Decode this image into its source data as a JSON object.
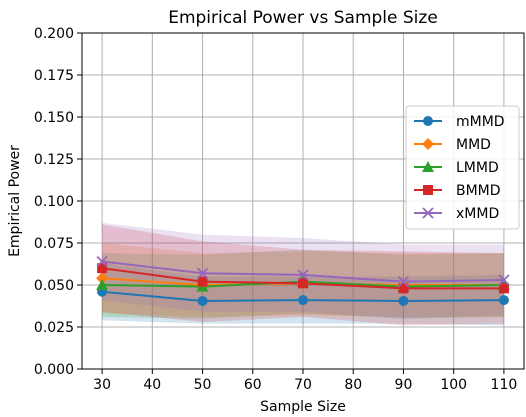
{
  "chart_data": {
    "type": "line",
    "title": "Empirical Power vs Sample Size",
    "xlabel": "Sample Size",
    "ylabel": "Empirical Power",
    "x": [
      30,
      50,
      70,
      90,
      110
    ],
    "xlim": [
      26,
      114
    ],
    "ylim": [
      0,
      0.2
    ],
    "xticks": [
      30,
      40,
      50,
      60,
      70,
      80,
      90,
      100,
      110
    ],
    "yticks": [
      0.0,
      0.025,
      0.05,
      0.075,
      0.1,
      0.125,
      0.15,
      0.175,
      0.2
    ],
    "ytick_labels": [
      "0.000",
      "0.025",
      "0.050",
      "0.075",
      "0.100",
      "0.125",
      "0.150",
      "0.175",
      "0.200"
    ],
    "grid": true,
    "legend_position": "center-right",
    "series": [
      {
        "name": "mMMD",
        "color": "#1f77b4",
        "marker": "circle",
        "values": [
          0.046,
          0.0405,
          0.041,
          0.0405,
          0.041
        ],
        "band_lower": [
          0.029,
          0.027,
          0.027,
          0.027,
          0.026
        ],
        "band_upper": [
          0.063,
          0.055,
          0.055,
          0.055,
          0.056
        ]
      },
      {
        "name": "MMD",
        "color": "#ff7f0e",
        "marker": "diamond",
        "values": [
          0.054,
          0.05,
          0.051,
          0.05,
          0.05
        ],
        "band_lower": [
          0.033,
          0.031,
          0.032,
          0.031,
          0.031
        ],
        "band_upper": [
          0.075,
          0.069,
          0.07,
          0.069,
          0.069
        ]
      },
      {
        "name": "LMMD",
        "color": "#2ca02c",
        "marker": "triangle",
        "values": [
          0.05,
          0.049,
          0.052,
          0.049,
          0.05
        ],
        "band_lower": [
          0.031,
          0.03,
          0.033,
          0.03,
          0.031
        ],
        "band_upper": [
          0.069,
          0.068,
          0.071,
          0.068,
          0.069
        ]
      },
      {
        "name": "BMMD",
        "color": "#d62728",
        "marker": "square",
        "values": [
          0.06,
          0.052,
          0.051,
          0.048,
          0.048
        ],
        "band_lower": [
          0.034,
          0.028,
          0.031,
          0.026,
          0.027
        ],
        "band_upper": [
          0.086,
          0.076,
          0.071,
          0.07,
          0.069
        ]
      },
      {
        "name": "xMMD",
        "color": "#9467bd",
        "marker": "x",
        "values": [
          0.064,
          0.057,
          0.056,
          0.052,
          0.053
        ],
        "band_lower": [
          0.041,
          0.034,
          0.034,
          0.03,
          0.032
        ],
        "band_upper": [
          0.087,
          0.08,
          0.078,
          0.074,
          0.074
        ]
      }
    ]
  }
}
